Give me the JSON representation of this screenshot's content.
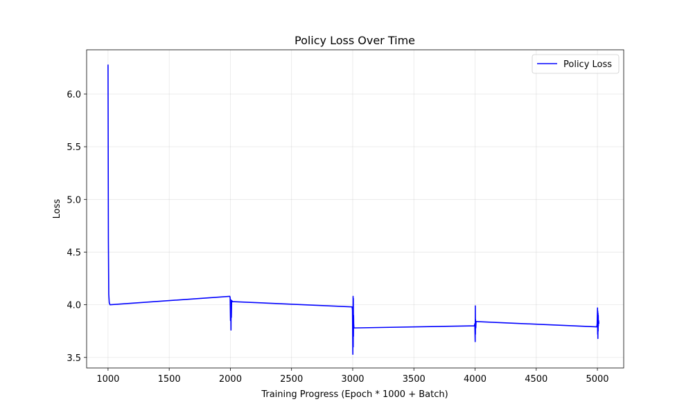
{
  "chart_data": {
    "type": "line",
    "title": "Policy Loss Over Time",
    "xlabel": "Training Progress (Epoch * 1000 + Batch)",
    "ylabel": "Loss",
    "xlim": [
      825,
      5215
    ],
    "ylim": [
      3.4,
      6.42
    ],
    "xticks": [
      1000,
      1500,
      2000,
      2500,
      3000,
      3500,
      4000,
      4500,
      5000
    ],
    "yticks": [
      3.5,
      4.0,
      4.5,
      5.0,
      5.5,
      6.0
    ],
    "xtick_labels": [
      "1000",
      "1500",
      "2000",
      "2500",
      "3000",
      "3500",
      "4000",
      "4500",
      "5000"
    ],
    "ytick_labels": [
      "3.5",
      "4.0",
      "4.5",
      "5.0",
      "5.5",
      "6.0"
    ],
    "grid": true,
    "legend_position": "top-right",
    "series": [
      {
        "name": "Policy Loss",
        "color": "#0000ff",
        "x": [
          1000,
          1003,
          1006,
          1010,
          1013,
          1016,
          1020,
          1995,
          1998,
          2001,
          2003,
          2005,
          2006,
          2008,
          2010,
          2012,
          2015,
          2995,
          2998,
          3001,
          3003,
          3004,
          3005,
          3006,
          3007,
          3008,
          3010,
          3012,
          3015,
          3995,
          3998,
          4001,
          4002,
          4003,
          4004,
          4006,
          4008,
          4012,
          4015,
          4995,
          4998,
          5001,
          5002,
          5003,
          5004,
          5005,
          5006,
          5007,
          5008,
          5010,
          5012
        ],
        "y": [
          6.28,
          4.6,
          4.1,
          4.02,
          4.01,
          4.0,
          4.0,
          4.08,
          4.07,
          3.85,
          4.05,
          3.76,
          4.03,
          3.88,
          4.02,
          4.04,
          4.03,
          3.98,
          3.95,
          3.53,
          4.08,
          3.6,
          4.06,
          3.7,
          3.9,
          3.82,
          3.78,
          3.78,
          3.78,
          3.8,
          3.82,
          3.65,
          3.99,
          3.72,
          3.86,
          3.78,
          3.84,
          3.84,
          3.84,
          3.79,
          3.82,
          3.97,
          3.72,
          3.94,
          3.68,
          3.92,
          3.75,
          3.9,
          3.8,
          3.85,
          3.82
        ]
      }
    ]
  }
}
